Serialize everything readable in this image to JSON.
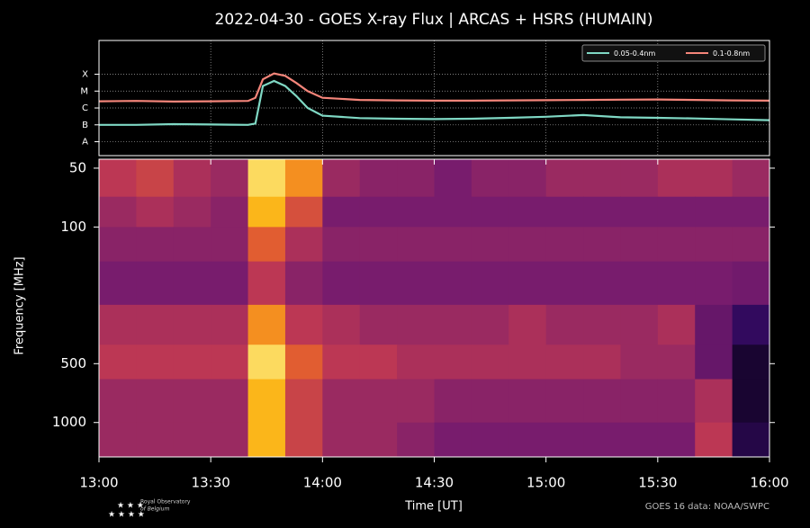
{
  "chart_data": [
    {
      "type": "line",
      "title": "2022-04-30 - GOES X-ray Flux | ARCAS + HSRS (HUMAIN)",
      "log_y": true,
      "grid": true,
      "legend": "upper right",
      "x": [
        "13:00",
        "13:10",
        "13:20",
        "13:30",
        "13:40",
        "13:42",
        "13:44",
        "13:47",
        "13:50",
        "13:53",
        "13:56",
        "14:00",
        "14:10",
        "14:20",
        "14:30",
        "14:40",
        "14:50",
        "15:00",
        "15:10",
        "15:20",
        "15:30",
        "15:40",
        "15:50",
        "16:00"
      ],
      "xlim": [
        "13:00",
        "16:00"
      ],
      "ylim": [
        1.5e-09,
        0.01
      ],
      "yticks": [
        {
          "value": 1e-08,
          "label": "A"
        },
        {
          "value": 1e-07,
          "label": "B"
        },
        {
          "value": 1e-06,
          "label": "C"
        },
        {
          "value": 1e-05,
          "label": "M"
        },
        {
          "value": 0.0001,
          "label": "X"
        }
      ],
      "series": [
        {
          "name": "0.05-0.4nm",
          "color": "#7fd8c4",
          "values": [
            1e-07,
            1e-07,
            1.1e-07,
            1.05e-07,
            1e-07,
            1.2e-07,
            2e-05,
            4e-05,
            2e-05,
            5e-06,
            1e-06,
            3.5e-07,
            2.5e-07,
            2.3e-07,
            2.2e-07,
            2.3e-07,
            2.6e-07,
            3e-07,
            3.8e-07,
            2.8e-07,
            2.6e-07,
            2.4e-07,
            2.1e-07,
            1.9e-07
          ]
        },
        {
          "name": "0.1-0.8nm",
          "color": "#f4857a",
          "values": [
            2.5e-06,
            2.6e-06,
            2.4e-06,
            2.5e-06,
            2.6e-06,
            4e-06,
            5e-05,
            0.00011,
            8e-05,
            3e-05,
            1e-05,
            4e-06,
            3e-06,
            2.8e-06,
            2.7e-06,
            2.7e-06,
            2.8e-06,
            2.9e-06,
            3e-06,
            3.1e-06,
            3.2e-06,
            3e-06,
            2.8e-06,
            2.7e-06
          ]
        }
      ]
    },
    {
      "type": "heatmap",
      "xlabel": "Time [UT]",
      "ylabel": "Frequency [MHz]",
      "log_y": true,
      "y_inverted": true,
      "x_bins": [
        "13:00",
        "13:10",
        "13:20",
        "13:30",
        "13:40",
        "13:50",
        "14:00",
        "14:10",
        "14:20",
        "14:30",
        "14:40",
        "14:50",
        "15:00",
        "15:10",
        "15:20",
        "15:30",
        "15:40",
        "15:50",
        "16:00"
      ],
      "y_bins": [
        45,
        70,
        100,
        150,
        250,
        400,
        600,
        1000,
        1500
      ],
      "xlim": [
        "13:00",
        "16:00"
      ],
      "ylim": [
        45,
        1500
      ],
      "xticks": [
        "13:00",
        "13:30",
        "14:00",
        "14:30",
        "15:00",
        "15:30",
        "16:00"
      ],
      "yticks": [
        50,
        100,
        500,
        1000
      ],
      "values": [
        [
          0.6,
          0.65,
          0.55,
          0.5,
          0.95,
          0.85,
          0.5,
          0.45,
          0.45,
          0.4,
          0.45,
          0.45,
          0.5,
          0.5,
          0.5,
          0.55,
          0.55,
          0.5
        ],
        [
          0.5,
          0.55,
          0.5,
          0.45,
          0.9,
          0.7,
          0.4,
          0.4,
          0.4,
          0.4,
          0.4,
          0.4,
          0.4,
          0.4,
          0.4,
          0.4,
          0.4,
          0.4
        ],
        [
          0.45,
          0.45,
          0.45,
          0.45,
          0.75,
          0.55,
          0.45,
          0.45,
          0.45,
          0.45,
          0.45,
          0.45,
          0.45,
          0.45,
          0.45,
          0.45,
          0.45,
          0.45
        ],
        [
          0.4,
          0.4,
          0.4,
          0.4,
          0.6,
          0.45,
          0.4,
          0.4,
          0.4,
          0.4,
          0.4,
          0.4,
          0.4,
          0.4,
          0.4,
          0.4,
          0.4,
          0.38
        ],
        [
          0.55,
          0.55,
          0.55,
          0.55,
          0.85,
          0.6,
          0.55,
          0.5,
          0.5,
          0.5,
          0.5,
          0.55,
          0.5,
          0.5,
          0.5,
          0.55,
          0.35,
          0.2
        ],
        [
          0.6,
          0.6,
          0.6,
          0.6,
          0.95,
          0.75,
          0.6,
          0.6,
          0.55,
          0.55,
          0.55,
          0.55,
          0.55,
          0.55,
          0.5,
          0.5,
          0.35,
          0.1
        ],
        [
          0.5,
          0.5,
          0.5,
          0.5,
          0.9,
          0.65,
          0.5,
          0.5,
          0.5,
          0.45,
          0.45,
          0.45,
          0.45,
          0.45,
          0.45,
          0.45,
          0.55,
          0.1
        ],
        [
          0.5,
          0.5,
          0.5,
          0.5,
          0.9,
          0.65,
          0.5,
          0.5,
          0.45,
          0.4,
          0.4,
          0.4,
          0.4,
          0.4,
          0.4,
          0.4,
          0.6,
          0.15
        ]
      ]
    }
  ],
  "footer": {
    "logo_line1": "Royal Observatory",
    "logo_line2": "of Belgium",
    "credit": "GOES 16 data: NOAA/SWPC"
  }
}
